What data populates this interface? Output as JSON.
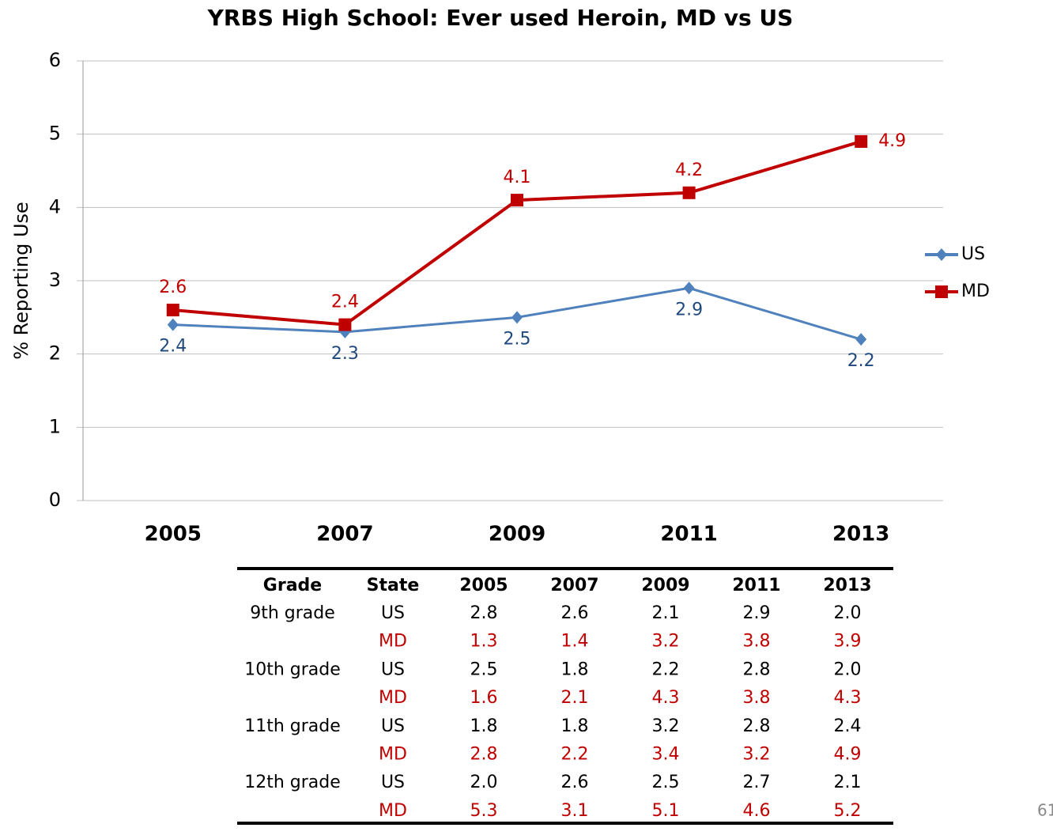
{
  "chart_data": {
    "type": "line",
    "title": "YRBS High School: Ever used Heroin, MD vs US",
    "y_label": "% Reporting Use",
    "categories": [
      "2005",
      "2007",
      "2009",
      "2011",
      "2013"
    ],
    "series": [
      {
        "name": "US",
        "color": "#4f81bd",
        "label_color": "#1f497d",
        "marker": "diamond",
        "values": [
          2.4,
          2.3,
          2.5,
          2.9,
          2.2
        ]
      },
      {
        "name": "MD",
        "color": "#c00000",
        "label_color": "#c00000",
        "marker": "square",
        "values": [
          2.6,
          2.4,
          4.1,
          4.2,
          4.9
        ]
      }
    ],
    "ylim": [
      0,
      6
    ],
    "yticks": [
      0,
      1,
      2,
      3,
      4,
      5,
      6
    ],
    "grid": true,
    "legend": "right"
  },
  "table": {
    "header": [
      "Grade",
      "State",
      "2005",
      "2007",
      "2009",
      "2011",
      "2013"
    ],
    "groups": [
      {
        "grade": "9th grade",
        "rows": [
          {
            "state": "US",
            "values": [
              "2.8",
              "2.6",
              "2.1",
              "2.9",
              "2.0"
            ]
          },
          {
            "state": "MD",
            "values": [
              "1.3",
              "1.4",
              "3.2",
              "3.8",
              "3.9"
            ]
          }
        ]
      },
      {
        "grade": "10th grade",
        "rows": [
          {
            "state": "US",
            "values": [
              "2.5",
              "1.8",
              "2.2",
              "2.8",
              "2.0"
            ]
          },
          {
            "state": "MD",
            "values": [
              "1.6",
              "2.1",
              "4.3",
              "3.8",
              "4.3"
            ]
          }
        ]
      },
      {
        "grade": "11th grade",
        "rows": [
          {
            "state": "US",
            "values": [
              "1.8",
              "1.8",
              "3.2",
              "2.8",
              "2.4"
            ]
          },
          {
            "state": "MD",
            "values": [
              "2.8",
              "2.2",
              "3.4",
              "3.2",
              "4.9"
            ]
          }
        ]
      },
      {
        "grade": "12th grade",
        "rows": [
          {
            "state": "US",
            "values": [
              "2.0",
              "2.6",
              "2.5",
              "2.7",
              "2.1"
            ]
          },
          {
            "state": "MD",
            "values": [
              "5.3",
              "3.1",
              "5.1",
              "4.6",
              "5.2"
            ]
          }
        ]
      }
    ]
  },
  "page_number": "61"
}
